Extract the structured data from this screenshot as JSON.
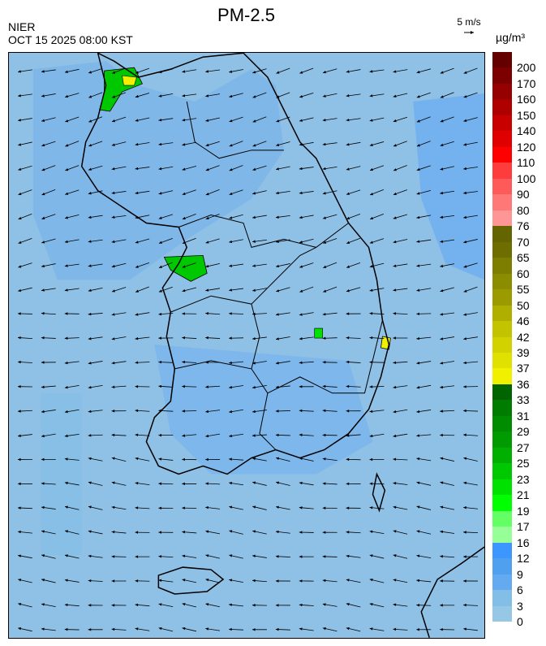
{
  "title": "PM-2.5",
  "organization": "NIER",
  "timestamp": "OCT 15 2025 08:00 KST",
  "wind_reference": {
    "label": "5 m/s"
  },
  "legend": {
    "unit": "µg/m³",
    "labels": [
      "200",
      "170",
      "160",
      "150",
      "140",
      "120",
      "110",
      "100",
      "90",
      "80",
      "76",
      "70",
      "65",
      "60",
      "55",
      "50",
      "46",
      "42",
      "39",
      "37",
      "36",
      "33",
      "31",
      "29",
      "27",
      "25",
      "23",
      "21",
      "19",
      "17",
      "16",
      "12",
      "9",
      "6",
      "3",
      "0"
    ],
    "colors": [
      "#640000",
      "#7d0000",
      "#960000",
      "#af0000",
      "#c80000",
      "#e10000",
      "#ff0000",
      "#ff3c3c",
      "#ff5a5a",
      "#ff7878",
      "#ff9696",
      "#646400",
      "#6e6e00",
      "#7d7d00",
      "#8c8c00",
      "#9b9b00",
      "#afaf00",
      "#c3c300",
      "#d2d200",
      "#e1e100",
      "#f0f000",
      "#006400",
      "#007d00",
      "#008c00",
      "#009b00",
      "#00af00",
      "#00c800",
      "#00e100",
      "#00ff00",
      "#64ff64",
      "#96ff96",
      "#3c96ff",
      "#50a0f0",
      "#64aaf0",
      "#82bee6",
      "#96c8e6"
    ]
  },
  "map": {
    "background_color": "#8fc0e6",
    "land_color": "#82b8e8",
    "wind_direction": "easterly (arrows pointing west)"
  }
}
